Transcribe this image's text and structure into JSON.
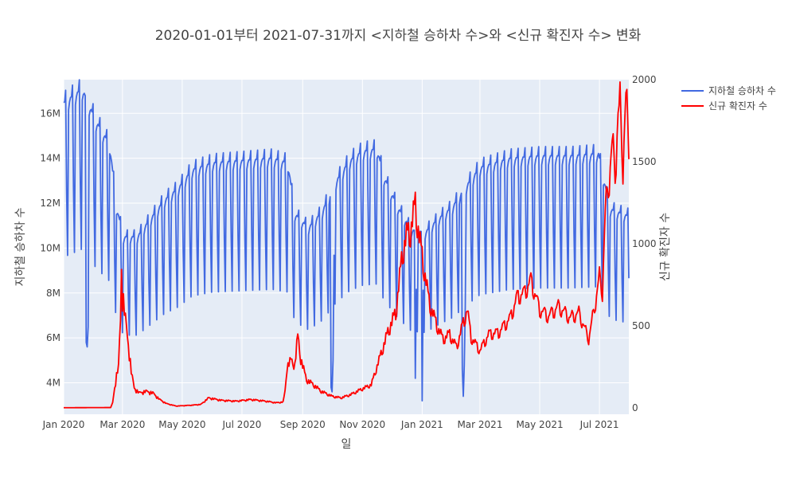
{
  "chart_data": {
    "type": "line",
    "title": "2020-01-01부터 2021-07-31까지 <지하철 승하차 수>와 <신규 확진자 수> 변화",
    "xlabel": "일",
    "ylabel_left": "지하철 승하차 수",
    "ylabel_right": "신규 확진자 수",
    "x_range": [
      "2020-01-01",
      "2021-07-31"
    ],
    "x_ticks": [
      {
        "date": "2020-01-01",
        "label": "Jan 2020"
      },
      {
        "date": "2020-03-01",
        "label": "Mar 2020"
      },
      {
        "date": "2020-05-01",
        "label": "May 2020"
      },
      {
        "date": "2020-07-01",
        "label": "Jul 2020"
      },
      {
        "date": "2020-09-01",
        "label": "Sep 2020"
      },
      {
        "date": "2020-11-01",
        "label": "Nov 2020"
      },
      {
        "date": "2021-01-01",
        "label": "Jan 2021"
      },
      {
        "date": "2021-03-01",
        "label": "Mar 2021"
      },
      {
        "date": "2021-05-01",
        "label": "May 2021"
      },
      {
        "date": "2021-07-01",
        "label": "Jul 2021"
      }
    ],
    "y_left_range": [
      2600000,
      17500000
    ],
    "y_left_ticks": [
      {
        "value": 4000000,
        "label": "4M"
      },
      {
        "value": 6000000,
        "label": "6M"
      },
      {
        "value": 8000000,
        "label": "8M"
      },
      {
        "value": 10000000,
        "label": "10M"
      },
      {
        "value": 12000000,
        "label": "12M"
      },
      {
        "value": 14000000,
        "label": "14M"
      },
      {
        "value": 16000000,
        "label": "16M"
      }
    ],
    "y_right_range": [
      -40,
      2000
    ],
    "y_right_ticks": [
      {
        "value": 0,
        "label": "0"
      },
      {
        "value": 500,
        "label": "500"
      },
      {
        "value": 1000,
        "label": "1000"
      },
      {
        "value": 1500,
        "label": "1500"
      },
      {
        "value": 2000,
        "label": "2000"
      }
    ],
    "grid": true,
    "legend_position": "top-right",
    "series": [
      {
        "name": "지하철 승하차 수",
        "axis": "left",
        "color": "#4169E1",
        "weekly_pattern": [
          1.0,
          1.02,
          1.03,
          1.03,
          1.06,
          0.78,
          0.6
        ],
        "weekday_points": [
          [
            "2020-01-01",
            16000000
          ],
          [
            "2020-01-20",
            16600000
          ],
          [
            "2020-02-03",
            15200000
          ],
          [
            "2020-02-17",
            14200000
          ],
          [
            "2020-02-24",
            11500000
          ],
          [
            "2020-03-02",
            10200000
          ],
          [
            "2020-03-16",
            10200000
          ],
          [
            "2020-03-30",
            11000000
          ],
          [
            "2020-04-13",
            11800000
          ],
          [
            "2020-04-27",
            12300000
          ],
          [
            "2020-05-11",
            13100000
          ],
          [
            "2020-06-01",
            13400000
          ],
          [
            "2020-07-01",
            13500000
          ],
          [
            "2020-08-01",
            13600000
          ],
          [
            "2020-08-17",
            13400000
          ],
          [
            "2020-08-24",
            11200000
          ],
          [
            "2020-09-07",
            10600000
          ],
          [
            "2020-09-21",
            11300000
          ],
          [
            "2020-10-05",
            12600000
          ],
          [
            "2020-10-19",
            13500000
          ],
          [
            "2020-11-01",
            13900000
          ],
          [
            "2020-11-16",
            14000000
          ],
          [
            "2020-11-23",
            12800000
          ],
          [
            "2020-12-07",
            11500000
          ],
          [
            "2020-12-21",
            10500000
          ],
          [
            "2021-01-04",
            10400000
          ],
          [
            "2021-01-18",
            11000000
          ],
          [
            "2021-02-01",
            11500000
          ],
          [
            "2021-02-15",
            12400000
          ],
          [
            "2021-03-01",
            13200000
          ],
          [
            "2021-04-01",
            13600000
          ],
          [
            "2021-05-01",
            13700000
          ],
          [
            "2021-06-01",
            13700000
          ],
          [
            "2021-06-30",
            13800000
          ],
          [
            "2021-07-12",
            11400000
          ],
          [
            "2021-07-31",
            11100000
          ]
        ],
        "dips": [
          [
            "2020-01-24",
            5800000
          ],
          [
            "2020-01-25",
            5600000
          ],
          [
            "2020-01-26",
            6500000
          ],
          [
            "2020-09-30",
            3800000
          ],
          [
            "2020-10-01",
            3600000
          ],
          [
            "2020-10-02",
            5000000
          ],
          [
            "2020-12-25",
            4200000
          ],
          [
            "2021-01-01",
            3200000
          ],
          [
            "2021-02-11",
            4600000
          ],
          [
            "2021-02-12",
            3400000
          ],
          [
            "2021-02-13",
            4800000
          ]
        ]
      },
      {
        "name": "신규 확진자 수",
        "axis": "right",
        "color": "#FF0000",
        "points": [
          [
            "2020-01-01",
            0
          ],
          [
            "2020-02-18",
            1
          ],
          [
            "2020-02-20",
            30
          ],
          [
            "2020-02-22",
            120
          ],
          [
            "2020-02-24",
            200
          ],
          [
            "2020-02-26",
            250
          ],
          [
            "2020-02-28",
            530
          ],
          [
            "2020-02-29",
            850
          ],
          [
            "2020-03-01",
            700
          ],
          [
            "2020-03-03",
            600
          ],
          [
            "2020-03-05",
            480
          ],
          [
            "2020-03-08",
            340
          ],
          [
            "2020-03-10",
            220
          ],
          [
            "2020-03-13",
            120
          ],
          [
            "2020-03-18",
            90
          ],
          [
            "2020-03-25",
            100
          ],
          [
            "2020-04-01",
            90
          ],
          [
            "2020-04-08",
            50
          ],
          [
            "2020-04-15",
            25
          ],
          [
            "2020-04-25",
            10
          ],
          [
            "2020-05-10",
            15
          ],
          [
            "2020-05-20",
            20
          ],
          [
            "2020-05-28",
            60
          ],
          [
            "2020-06-10",
            45
          ],
          [
            "2020-06-25",
            40
          ],
          [
            "2020-07-10",
            50
          ],
          [
            "2020-07-25",
            40
          ],
          [
            "2020-08-05",
            30
          ],
          [
            "2020-08-12",
            35
          ],
          [
            "2020-08-14",
            100
          ],
          [
            "2020-08-16",
            250
          ],
          [
            "2020-08-20",
            290
          ],
          [
            "2020-08-24",
            260
          ],
          [
            "2020-08-27",
            440
          ],
          [
            "2020-08-30",
            300
          ],
          [
            "2020-09-05",
            170
          ],
          [
            "2020-09-10",
            150
          ],
          [
            "2020-09-20",
            100
          ],
          [
            "2020-10-01",
            70
          ],
          [
            "2020-10-10",
            60
          ],
          [
            "2020-10-20",
            80
          ],
          [
            "2020-10-30",
            110
          ],
          [
            "2020-11-10",
            140
          ],
          [
            "2020-11-20",
            330
          ],
          [
            "2020-11-28",
            480
          ],
          [
            "2020-12-05",
            580
          ],
          [
            "2020-12-12",
            950
          ],
          [
            "2020-12-16",
            1050
          ],
          [
            "2020-12-20",
            1080
          ],
          [
            "2020-12-25",
            1240
          ],
          [
            "2020-12-29",
            1040
          ],
          [
            "2021-01-03",
            850
          ],
          [
            "2021-01-08",
            650
          ],
          [
            "2021-01-15",
            520
          ],
          [
            "2021-01-22",
            420
          ],
          [
            "2021-01-29",
            450
          ],
          [
            "2021-02-05",
            370
          ],
          [
            "2021-02-11",
            500
          ],
          [
            "2021-02-16",
            600
          ],
          [
            "2021-02-20",
            430
          ],
          [
            "2021-03-01",
            350
          ],
          [
            "2021-03-10",
            450
          ],
          [
            "2021-03-20",
            460
          ],
          [
            "2021-04-01",
            550
          ],
          [
            "2021-04-08",
            680
          ],
          [
            "2021-04-15",
            700
          ],
          [
            "2021-04-22",
            780
          ],
          [
            "2021-05-01",
            600
          ],
          [
            "2021-05-10",
            560
          ],
          [
            "2021-05-20",
            620
          ],
          [
            "2021-06-01",
            550
          ],
          [
            "2021-06-10",
            580
          ],
          [
            "2021-06-20",
            420
          ],
          [
            "2021-06-27",
            650
          ],
          [
            "2021-07-01",
            800
          ],
          [
            "2021-07-04",
            710
          ],
          [
            "2021-07-07",
            1200
          ],
          [
            "2021-07-10",
            1360
          ],
          [
            "2021-07-14",
            1600
          ],
          [
            "2021-07-17",
            1450
          ],
          [
            "2021-07-20",
            1780
          ],
          [
            "2021-07-22",
            1840
          ],
          [
            "2021-07-25",
            1500
          ],
          [
            "2021-07-28",
            1890
          ],
          [
            "2021-07-30",
            1700
          ],
          [
            "2021-07-31",
            1600
          ]
        ]
      }
    ]
  }
}
